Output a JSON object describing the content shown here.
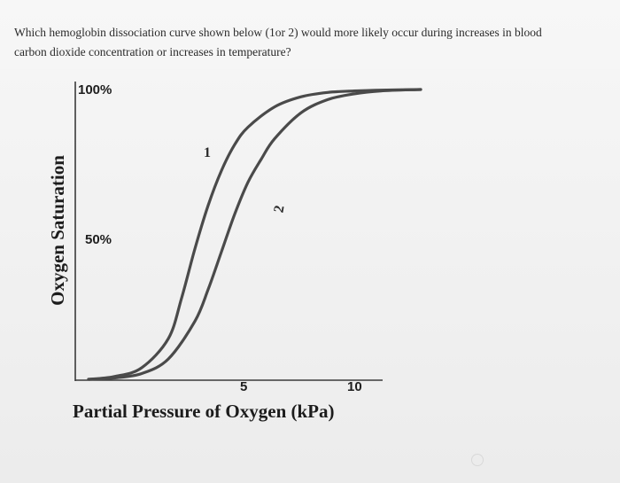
{
  "question": {
    "text": "Which hemoglobin dissociation curve shown below (1or 2) would more likely occur during increases in blood carbon dioxide concentration or increases in temperature?"
  },
  "chart_data": {
    "type": "line",
    "title": "",
    "xlabel": "Partial Pressure of Oxygen (kPa)",
    "ylabel": "Oxygen Saturation",
    "xlim": [
      0,
      13
    ],
    "ylim": [
      0,
      100
    ],
    "x_ticks": [
      {
        "value": 5,
        "label": "5"
      },
      {
        "value": 10,
        "label": "10"
      }
    ],
    "y_ticks": [
      {
        "value": 100,
        "label": "100%"
      },
      {
        "value": 50,
        "label": "50%"
      }
    ],
    "grid": false,
    "series": [
      {
        "name": "1",
        "color": "#4a4a4a",
        "x": [
          0,
          1,
          2,
          3,
          3.5,
          4,
          4.5,
          5,
          5.5,
          6,
          7,
          8,
          9,
          10,
          11,
          12.5
        ],
        "y": [
          0,
          1,
          4,
          14,
          28,
          45,
          60,
          72,
          81,
          87,
          94,
          97.5,
          99,
          99.5,
          99.8,
          100
        ]
      },
      {
        "name": "2",
        "color": "#4a4a4a",
        "x": [
          0,
          1,
          2,
          3,
          4,
          4.5,
          5,
          5.5,
          6,
          6.5,
          7,
          8,
          9,
          10,
          11,
          12.5
        ],
        "y": [
          0,
          0.5,
          2,
          7,
          20,
          31,
          44,
          57,
          68,
          76,
          83,
          92,
          96.5,
          98.5,
          99.5,
          100
        ]
      }
    ]
  }
}
